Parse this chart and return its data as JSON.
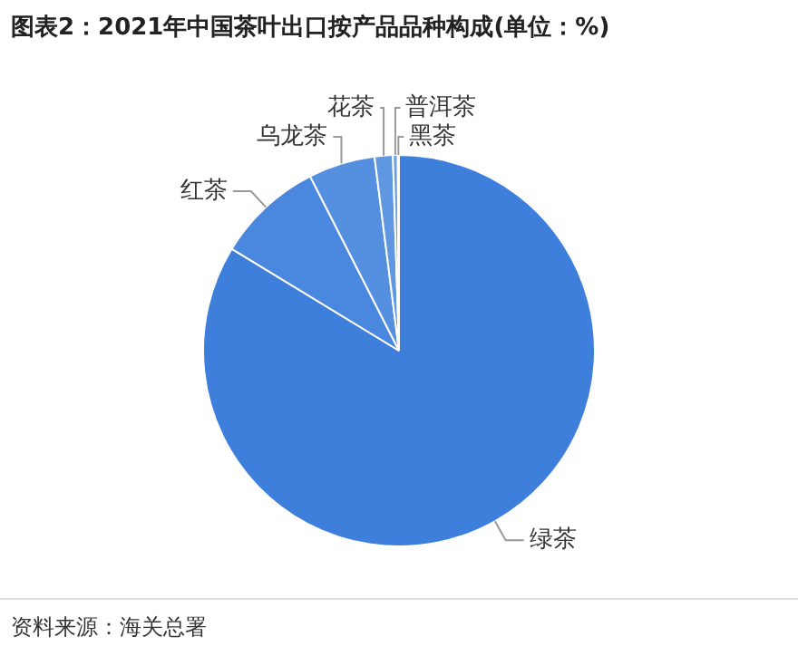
{
  "chart_data": {
    "type": "pie",
    "title": "图表2：2021年中国茶叶出口按产品品种构成(单位：%)",
    "categories": [
      "绿茶",
      "红茶",
      "乌龙茶",
      "花茶",
      "普洱茶",
      "黑茶"
    ],
    "values": [
      83.7,
      8.8,
      5.5,
      1.5,
      0.4,
      0.1
    ],
    "colors": [
      "#3f7fdc",
      "#4a87de",
      "#5590e0",
      "#5f97e2",
      "#6a9fe4",
      "#74a6e6"
    ],
    "legend": false,
    "annotations": [
      "资料来源：海关总署"
    ]
  }
}
